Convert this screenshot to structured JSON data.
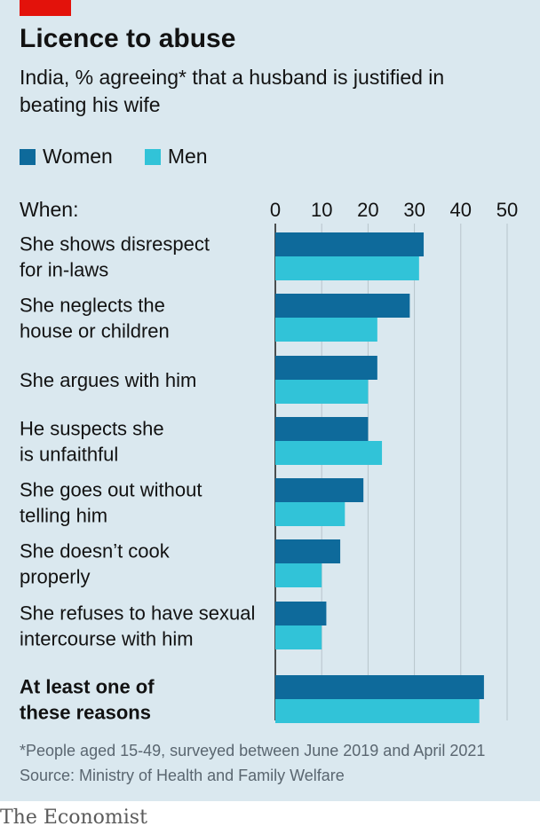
{
  "title": "Licence to abuse",
  "subtitle": "India, % agreeing* that a husband is justified in beating his wife",
  "footnote": "*People aged 15-49, surveyed between June 2019 and April 2021",
  "source": "Source: Ministry of Health and Family Welfare",
  "brand": "The Economist",
  "colors": {
    "women": "#0e6a9b",
    "men": "#31c3d8",
    "background": "#dae8ef",
    "accent": "#e3120b"
  },
  "chart_data": {
    "type": "bar",
    "orientation": "horizontal",
    "category_header": "When:",
    "categories": [
      [
        "She shows disrespect",
        "for in-laws"
      ],
      [
        "She neglects the",
        "house or children"
      ],
      [
        "She argues with him"
      ],
      [
        "He suspects she",
        "is unfaithful"
      ],
      [
        "She goes out without",
        "telling him"
      ],
      [
        "She doesn’t cook",
        "properly"
      ],
      [
        "She refuses to have sexual",
        "intercourse with him"
      ],
      [
        "At least one of",
        "these reasons"
      ]
    ],
    "series": [
      {
        "name": "Women",
        "values": [
          32,
          29,
          22,
          20,
          19,
          14,
          11,
          45
        ]
      },
      {
        "name": "Men",
        "values": [
          31,
          22,
          20,
          23,
          15,
          10,
          10,
          44
        ]
      }
    ],
    "xlim": [
      0,
      50
    ],
    "xticks": [
      0,
      10,
      20,
      30,
      40,
      50
    ],
    "xtick_labels": [
      "0",
      "10",
      "20",
      "30",
      "40",
      "50"
    ],
    "grid": true,
    "axis_position": "top",
    "legend_position": "top-left"
  }
}
